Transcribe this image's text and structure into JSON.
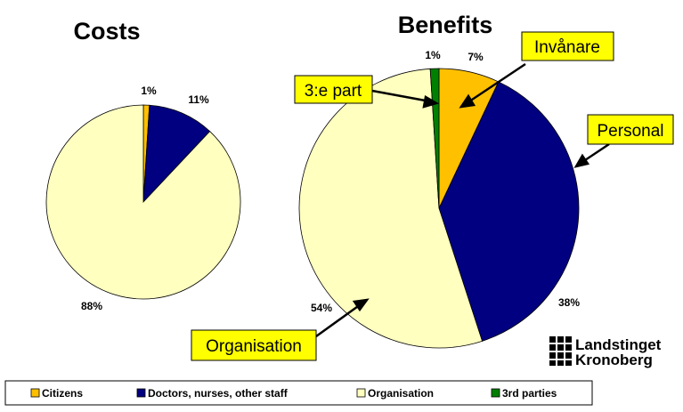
{
  "chart_data": [
    {
      "type": "pie",
      "title": "Costs",
      "slices": [
        {
          "category": "Citizens",
          "value": 1,
          "label": "1%"
        },
        {
          "category": "Doctors, nurses, other staff",
          "value": 11,
          "label": "11%"
        },
        {
          "category": "Organisation",
          "value": 88,
          "label": "88%"
        }
      ]
    },
    {
      "type": "pie",
      "title": "Benefits",
      "slices": [
        {
          "category": "Citizens",
          "value": 7,
          "label": "7%"
        },
        {
          "category": "Doctors, nurses, other staff",
          "value": 38,
          "label": "38%"
        },
        {
          "category": "Organisation",
          "value": 54,
          "label": "54%"
        },
        {
          "category": "3rd parties",
          "value": 1,
          "label": "1%"
        }
      ],
      "callouts": [
        "Invånare",
        "Personal",
        "Organisation",
        "3:e part"
      ]
    }
  ],
  "legend": {
    "placement": "bottom",
    "items": [
      {
        "label": "Citizens",
        "color": "#ffc000"
      },
      {
        "label": "Doctors, nurses, other staff",
        "color": "#000080"
      },
      {
        "label": "Organisation",
        "color": "#ffffc0"
      },
      {
        "label": "3rd parties",
        "color": "#008000"
      }
    ]
  },
  "logo": {
    "line1": "Landstinget",
    "line2": "Kronoberg"
  }
}
